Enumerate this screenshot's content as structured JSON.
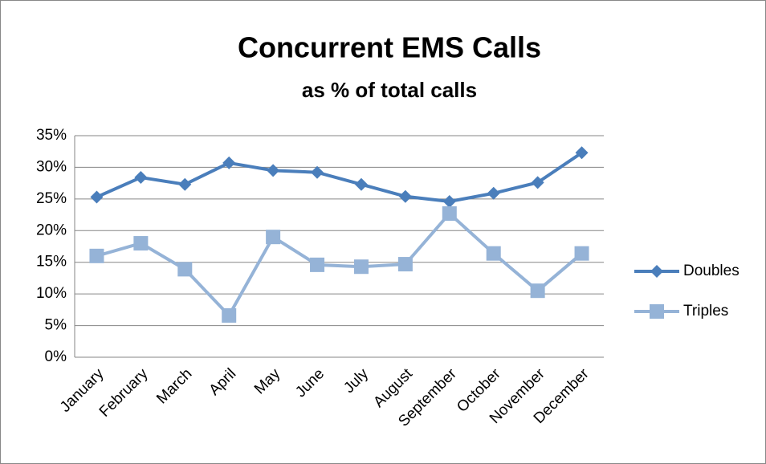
{
  "chart_data": {
    "type": "line",
    "title": "Concurrent EMS Calls",
    "subtitle": "as % of total calls",
    "categories": [
      "January",
      "February",
      "March",
      "April",
      "May",
      "June",
      "July",
      "August",
      "September",
      "October",
      "November",
      "December"
    ],
    "series": [
      {
        "name": "Doubles",
        "color": "#4a7ebb",
        "marker": "diamond",
        "values": [
          25.3,
          28.4,
          27.3,
          30.7,
          29.5,
          29.2,
          27.3,
          25.4,
          24.6,
          25.9,
          27.6,
          32.3
        ]
      },
      {
        "name": "Triples",
        "color": "#95b3d7",
        "marker": "square",
        "values": [
          16.0,
          18.0,
          13.9,
          6.6,
          19.0,
          14.6,
          14.3,
          14.7,
          22.7,
          16.4,
          10.5,
          16.4
        ]
      }
    ],
    "ylim": [
      0,
      35
    ],
    "yticks": [
      {
        "value": 0,
        "label": "0%"
      },
      {
        "value": 5,
        "label": "5%"
      },
      {
        "value": 10,
        "label": "10%"
      },
      {
        "value": 15,
        "label": "15%"
      },
      {
        "value": 20,
        "label": "20%"
      },
      {
        "value": 25,
        "label": "25%"
      },
      {
        "value": 30,
        "label": "30%"
      },
      {
        "value": 35,
        "label": "35%"
      }
    ],
    "grid": true,
    "legend": "right"
  }
}
